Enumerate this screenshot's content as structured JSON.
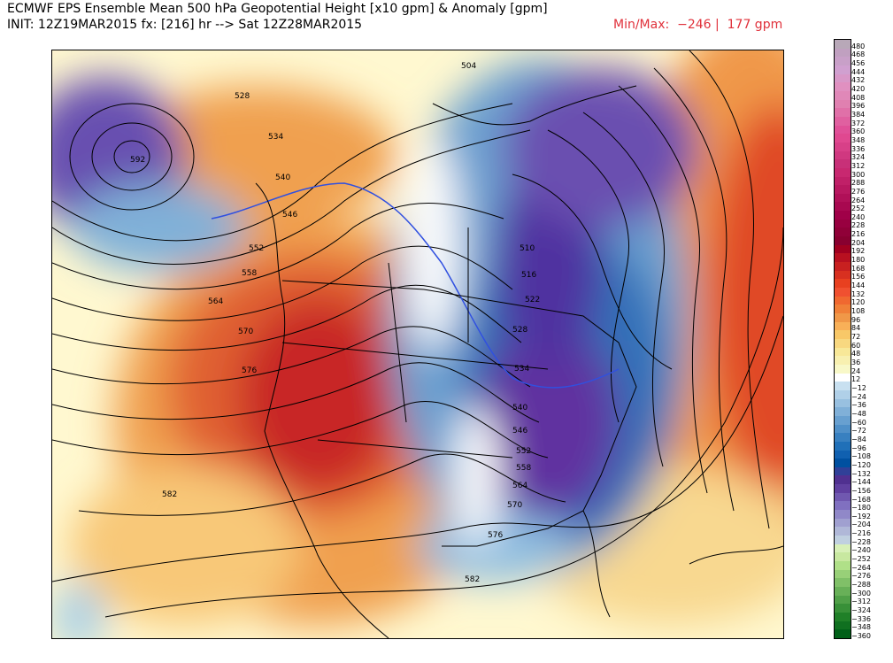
{
  "header": {
    "title_line1": "ECMWF EPS Ensemble Mean 500 hPa Geopotential Height [x10 gpm] & Anomaly [gpm]",
    "title_line2": "INIT: 12Z19MAR2015 fx: [216] hr --> Sat 12Z28MAR2015",
    "minmax": "Min/Max:  −246 |  177 gpm"
  },
  "map": {
    "contour_labels": [
      "504",
      "510",
      "516",
      "522",
      "528",
      "534",
      "540",
      "546",
      "552",
      "558",
      "564",
      "570",
      "576",
      "582",
      "592",
      "528",
      "534",
      "540",
      "546",
      "552",
      "558",
      "564",
      "570",
      "576",
      "582"
    ]
  },
  "colorbar": {
    "labels": [
      "480",
      "468",
      "456",
      "444",
      "432",
      "420",
      "408",
      "396",
      "384",
      "372",
      "360",
      "348",
      "336",
      "324",
      "312",
      "300",
      "288",
      "276",
      "264",
      "252",
      "240",
      "228",
      "216",
      "204",
      "192",
      "180",
      "168",
      "156",
      "144",
      "132",
      "120",
      "108",
      "96",
      "84",
      "72",
      "60",
      "48",
      "36",
      "24",
      "12",
      "−12",
      "−24",
      "−36",
      "−48",
      "−60",
      "−72",
      "−84",
      "−96",
      "−108",
      "−120",
      "−132",
      "−144",
      "−156",
      "−168",
      "−180",
      "−192",
      "−204",
      "−216",
      "−228",
      "−240",
      "−252",
      "−264",
      "−276",
      "−288",
      "−300",
      "−312",
      "−324",
      "−336",
      "−348",
      "−360"
    ],
    "colors": [
      "#b8a8b8",
      "#c0a0c0",
      "#c8a0c8",
      "#d0a0d0",
      "#d898c8",
      "#e090c0",
      "#e088b8",
      "#e080b0",
      "#e070a8",
      "#e060a0",
      "#e05098",
      "#e04890",
      "#d84088",
      "#d03880",
      "#c83078",
      "#c82870",
      "#c02068",
      "#b81860",
      "#b01058",
      "#a80850",
      "#a00048",
      "#980040",
      "#900038",
      "#880030",
      "#a00020",
      "#b81020",
      "#c82020",
      "#d83020",
      "#e84020",
      "#f05030",
      "#f06830",
      "#f08038",
      "#f09848",
      "#f8b058",
      "#f8c868",
      "#f8d880",
      "#f8e898",
      "#f8f0b0",
      "#f8f8c8",
      "#ffffff",
      "#c8e0f0",
      "#b0d0e8",
      "#98c0e0",
      "#80b0d8",
      "#68a0d0",
      "#5090c8",
      "#3880c0",
      "#2070b8",
      "#1060b0",
      "#0050a0",
      "#304098",
      "#503090",
      "#6040a0",
      "#7058b0",
      "#8070c0",
      "#9088c8",
      "#a0a0d0",
      "#b0b8d8",
      "#c0d0e0",
      "#d8f0b8",
      "#c8e8a0",
      "#b0e088",
      "#98d078",
      "#80c068",
      "#68b058",
      "#50a048",
      "#389038",
      "#208028",
      "#107020",
      "#006018"
    ]
  }
}
